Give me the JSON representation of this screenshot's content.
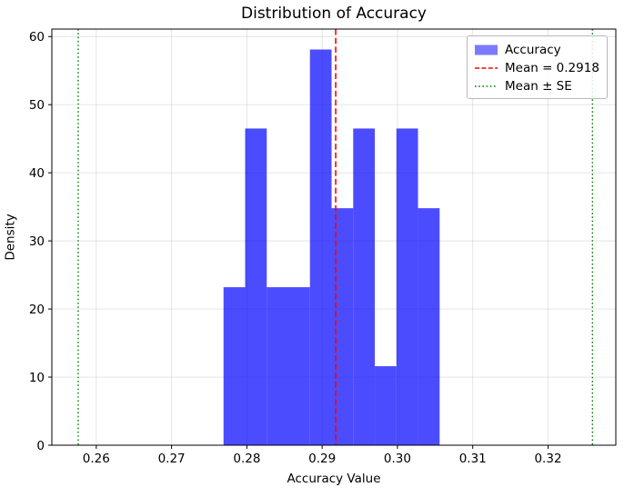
{
  "chart_data": {
    "type": "bar",
    "subtype": "histogram",
    "title": "Distribution of Accuracy",
    "xlabel": "Accuracy Value",
    "ylabel": "Density",
    "bin_edges": [
      0.2769,
      0.27977,
      0.28264,
      0.28551,
      0.28838,
      0.29125,
      0.29412,
      0.29699,
      0.29986,
      0.30273,
      0.3056
    ],
    "densities": [
      23.2,
      46.5,
      23.2,
      23.2,
      58.1,
      34.8,
      46.5,
      11.6,
      46.5,
      34.8
    ],
    "counts": [
      2,
      4,
      2,
      2,
      5,
      3,
      4,
      1,
      4,
      3
    ],
    "mean": 0.2918,
    "se": 0.0341,
    "mean_minus_se": 0.2576,
    "mean_plus_se": 0.3259,
    "xlim": [
      0.2541,
      0.329
    ],
    "ylim": [
      0,
      61.1
    ],
    "xticks": [
      0.26,
      0.27,
      0.28,
      0.29,
      0.3,
      0.31,
      0.32
    ],
    "xtick_labels": [
      "0.26",
      "0.27",
      "0.28",
      "0.29",
      "0.30",
      "0.31",
      "0.32"
    ],
    "yticks": [
      0,
      10,
      20,
      30,
      40,
      50,
      60
    ],
    "ytick_labels": [
      "0",
      "10",
      "20",
      "30",
      "40",
      "50",
      "60"
    ],
    "grid": true,
    "legend": {
      "position": "upper right",
      "entries": [
        {
          "label": "Accuracy",
          "type": "patch",
          "color": "#4d4dff"
        },
        {
          "label": "Mean = 0.2918",
          "type": "dashed-line",
          "color": "#ff0000"
        },
        {
          "label": "Mean ± SE",
          "type": "dotted-line",
          "color": "#008000"
        }
      ]
    },
    "colors": {
      "bar": "#0000ff",
      "bar_opacity": 0.7,
      "mean_line": "#ff0000",
      "se_line": "#008000",
      "grid": "#b0b0b0",
      "spine": "#000000"
    }
  }
}
